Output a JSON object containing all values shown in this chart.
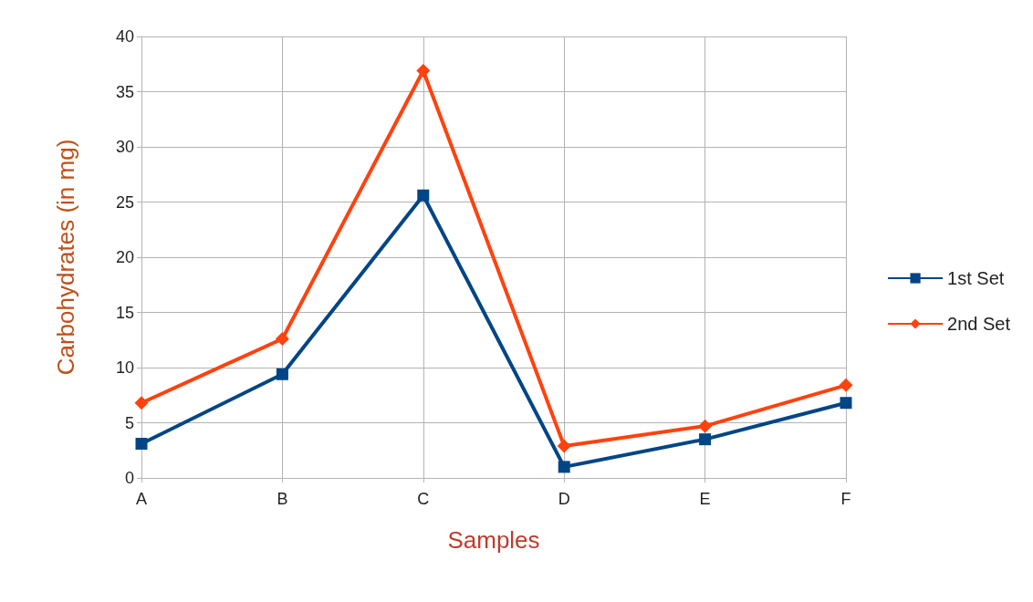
{
  "chart_data": {
    "type": "line",
    "xlabel": "Samples",
    "ylabel": "Carbohydrates (in mg)",
    "categories": [
      "A",
      "B",
      "C",
      "D",
      "E",
      "F"
    ],
    "series": [
      {
        "name": "1st Set",
        "color": "#004586",
        "marker": "square",
        "values": [
          3.1,
          9.4,
          25.6,
          1.0,
          3.5,
          6.8
        ]
      },
      {
        "name": "2nd Set",
        "color": "#ff420e",
        "marker": "diamond",
        "values": [
          6.8,
          12.6,
          36.9,
          2.9,
          4.7,
          8.4
        ]
      }
    ],
    "ylim": [
      0,
      40
    ],
    "yticks": [
      0,
      5,
      10,
      15,
      20,
      25,
      30,
      35,
      40
    ],
    "grid": true,
    "legend": "right",
    "line_style": "solid"
  }
}
